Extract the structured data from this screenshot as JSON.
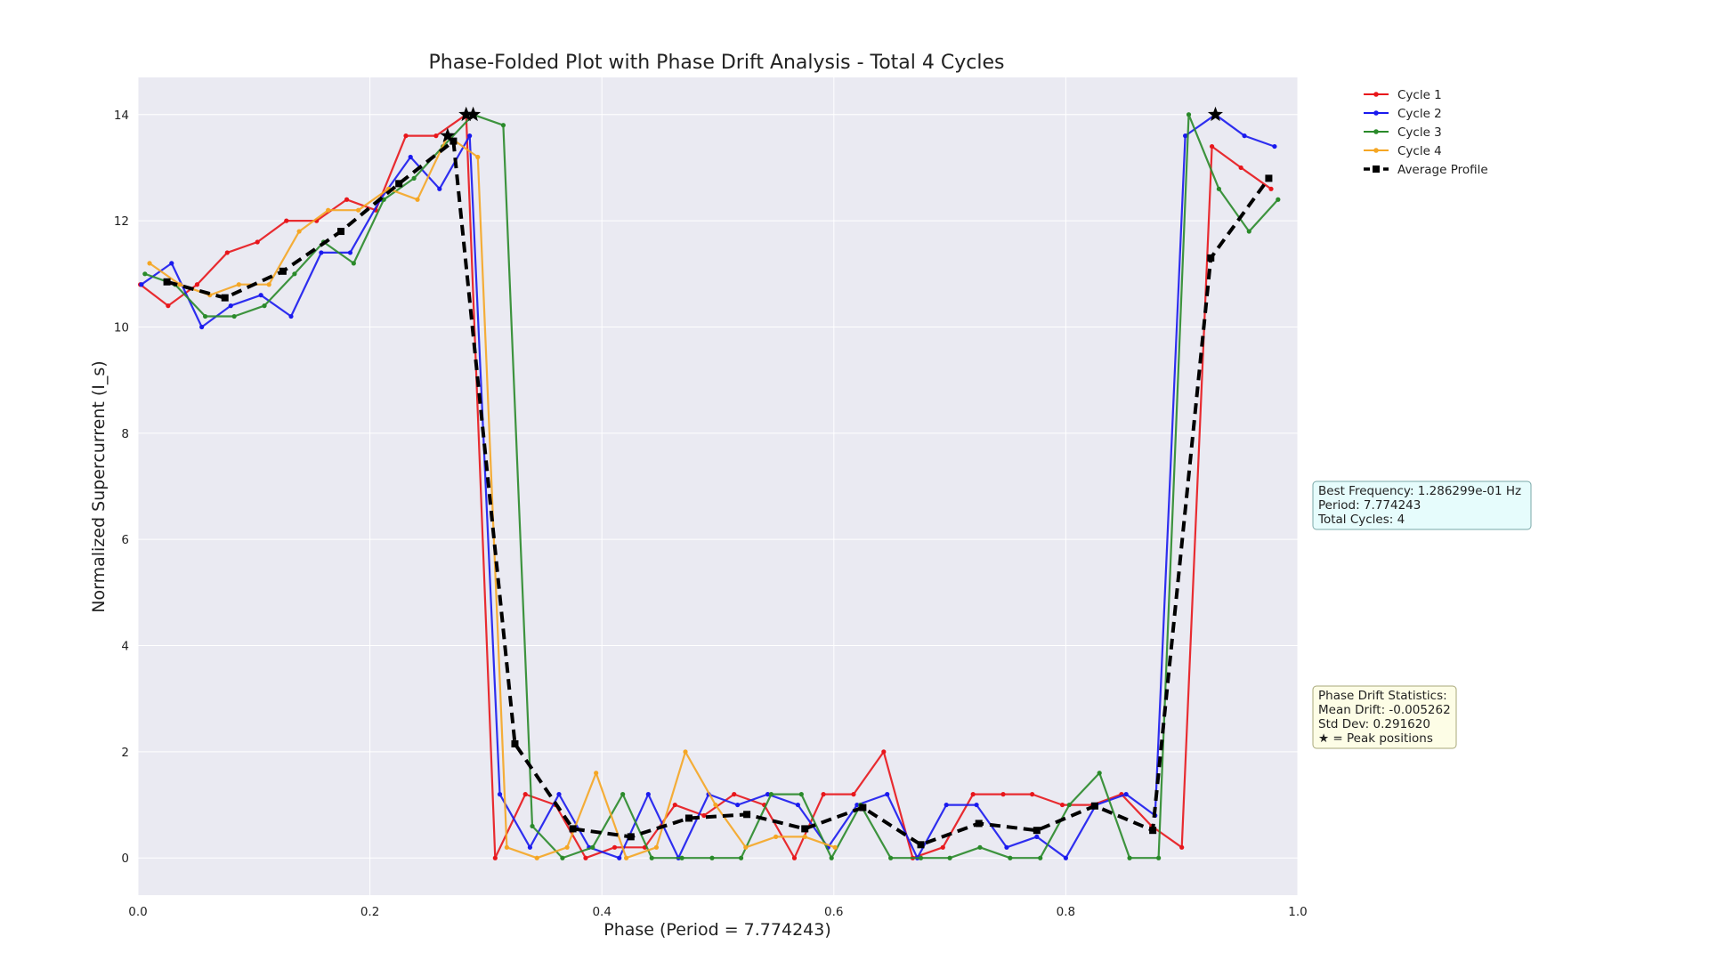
{
  "chart_data": {
    "type": "line",
    "title": "Phase-Folded Plot with Phase Drift Analysis - Total 4 Cycles",
    "xlabel": "Phase (Period = 7.774243)",
    "ylabel": "Normalized Supercurrent (I_s)",
    "xlim": [
      0.0,
      1.0
    ],
    "ylim": [
      -0.7,
      14.7
    ],
    "x_ticks": [
      "0.0",
      "0.2",
      "0.4",
      "0.6",
      "0.8",
      "1.0"
    ],
    "y_ticks": [
      "0",
      "2",
      "4",
      "6",
      "8",
      "10",
      "12",
      "14"
    ],
    "grid": true,
    "legend_placement": "outside-right",
    "series": [
      {
        "name": "Cycle 1",
        "color": "#e8161b",
        "style": "solid",
        "points": [
          [
            0.002,
            10.8
          ],
          [
            0.026,
            10.4
          ],
          [
            0.051,
            10.8
          ],
          [
            0.077,
            11.4
          ],
          [
            0.103,
            11.6
          ],
          [
            0.128,
            12.0
          ],
          [
            0.154,
            12.0
          ],
          [
            0.18,
            12.4
          ],
          [
            0.205,
            12.2
          ],
          [
            0.231,
            13.6
          ],
          [
            0.257,
            13.6
          ],
          [
            0.283,
            14.0
          ],
          [
            0.308,
            0.0
          ],
          [
            0.334,
            1.2
          ],
          [
            0.36,
            1.0
          ],
          [
            0.386,
            0.0
          ],
          [
            0.411,
            0.2
          ],
          [
            0.437,
            0.2
          ],
          [
            0.463,
            1.0
          ],
          [
            0.488,
            0.8
          ],
          [
            0.514,
            1.2
          ],
          [
            0.54,
            1.0
          ],
          [
            0.566,
            0.0
          ],
          [
            0.591,
            1.2
          ],
          [
            0.617,
            1.2
          ],
          [
            0.643,
            2.0
          ],
          [
            0.668,
            0.0
          ],
          [
            0.694,
            0.2
          ],
          [
            0.72,
            1.2
          ],
          [
            0.746,
            1.2
          ],
          [
            0.771,
            1.2
          ],
          [
            0.797,
            1.0
          ],
          [
            0.823,
            1.0
          ],
          [
            0.848,
            1.2
          ],
          [
            0.874,
            0.6
          ],
          [
            0.9,
            0.2
          ],
          [
            0.926,
            13.4
          ],
          [
            0.951,
            13.0
          ],
          [
            0.977,
            12.6
          ]
        ]
      },
      {
        "name": "Cycle 2",
        "color": "#1a1aee",
        "style": "solid",
        "points": [
          [
            0.003,
            10.8
          ],
          [
            0.029,
            11.2
          ],
          [
            0.055,
            10.0
          ],
          [
            0.08,
            10.4
          ],
          [
            0.106,
            10.6
          ],
          [
            0.132,
            10.2
          ],
          [
            0.158,
            11.4
          ],
          [
            0.183,
            11.4
          ],
          [
            0.209,
            12.4
          ],
          [
            0.235,
            13.2
          ],
          [
            0.26,
            12.6
          ],
          [
            0.286,
            13.6
          ],
          [
            0.312,
            1.2
          ],
          [
            0.338,
            0.2
          ],
          [
            0.363,
            1.2
          ],
          [
            0.389,
            0.2
          ],
          [
            0.415,
            0.0
          ],
          [
            0.44,
            1.2
          ],
          [
            0.466,
            0.0
          ],
          [
            0.492,
            1.2
          ],
          [
            0.517,
            1.0
          ],
          [
            0.543,
            1.2
          ],
          [
            0.569,
            1.0
          ],
          [
            0.595,
            0.2
          ],
          [
            0.62,
            1.0
          ],
          [
            0.646,
            1.2
          ],
          [
            0.672,
            0.0
          ],
          [
            0.697,
            1.0
          ],
          [
            0.723,
            1.0
          ],
          [
            0.749,
            0.2
          ],
          [
            0.775,
            0.4
          ],
          [
            0.8,
            0.0
          ],
          [
            0.826,
            1.0
          ],
          [
            0.852,
            1.2
          ],
          [
            0.877,
            0.8
          ],
          [
            0.903,
            13.6
          ],
          [
            0.929,
            14.0
          ],
          [
            0.954,
            13.6
          ],
          [
            0.98,
            13.4
          ]
        ]
      },
      {
        "name": "Cycle 3",
        "color": "#2a8a2a",
        "style": "solid",
        "points": [
          [
            0.006,
            11.0
          ],
          [
            0.032,
            10.8
          ],
          [
            0.058,
            10.2
          ],
          [
            0.083,
            10.2
          ],
          [
            0.109,
            10.4
          ],
          [
            0.135,
            11.0
          ],
          [
            0.16,
            11.6
          ],
          [
            0.186,
            11.2
          ],
          [
            0.212,
            12.4
          ],
          [
            0.238,
            12.8
          ],
          [
            0.263,
            13.4
          ],
          [
            0.289,
            14.0
          ],
          [
            0.315,
            13.8
          ],
          [
            0.34,
            0.6
          ],
          [
            0.366,
            0.0
          ],
          [
            0.392,
            0.2
          ],
          [
            0.418,
            1.2
          ],
          [
            0.443,
            0.0
          ],
          [
            0.469,
            0.0
          ],
          [
            0.495,
            0.0
          ],
          [
            0.52,
            0.0
          ],
          [
            0.546,
            1.2
          ],
          [
            0.572,
            1.2
          ],
          [
            0.598,
            0.0
          ],
          [
            0.623,
            1.0
          ],
          [
            0.649,
            0.0
          ],
          [
            0.675,
            0.0
          ],
          [
            0.7,
            0.0
          ],
          [
            0.726,
            0.2
          ],
          [
            0.752,
            0.0
          ],
          [
            0.778,
            0.0
          ],
          [
            0.803,
            1.0
          ],
          [
            0.829,
            1.6
          ],
          [
            0.855,
            0.0
          ],
          [
            0.88,
            0.0
          ],
          [
            0.906,
            14.0
          ],
          [
            0.932,
            12.6
          ],
          [
            0.958,
            11.8
          ],
          [
            0.983,
            12.4
          ]
        ]
      },
      {
        "name": "Cycle 4",
        "color": "#f5a623",
        "style": "solid",
        "points": [
          [
            0.01,
            11.2
          ],
          [
            0.036,
            10.8
          ],
          [
            0.062,
            10.6
          ],
          [
            0.087,
            10.8
          ],
          [
            0.113,
            10.8
          ],
          [
            0.139,
            11.8
          ],
          [
            0.164,
            12.2
          ],
          [
            0.19,
            12.2
          ],
          [
            0.216,
            12.6
          ],
          [
            0.241,
            12.4
          ],
          [
            0.267,
            13.6
          ],
          [
            0.293,
            13.2
          ],
          [
            0.318,
            0.2
          ],
          [
            0.344,
            0.0
          ],
          [
            0.37,
            0.2
          ],
          [
            0.395,
            1.6
          ],
          [
            0.421,
            0.0
          ],
          [
            0.447,
            0.2
          ],
          [
            0.472,
            2.0
          ],
          [
            0.498,
            1.0
          ],
          [
            0.524,
            0.2
          ],
          [
            0.55,
            0.4
          ],
          [
            0.575,
            0.4
          ],
          [
            0.601,
            0.2
          ]
        ]
      },
      {
        "name": "Average Profile",
        "color": "#000000",
        "style": "dashed",
        "points": [
          [
            0.025,
            10.85
          ],
          [
            0.075,
            10.55
          ],
          [
            0.125,
            11.05
          ],
          [
            0.175,
            11.8
          ],
          [
            0.225,
            12.7
          ],
          [
            0.272,
            13.5
          ],
          [
            0.325,
            2.15
          ],
          [
            0.375,
            0.55
          ],
          [
            0.425,
            0.4
          ],
          [
            0.475,
            0.75
          ],
          [
            0.525,
            0.82
          ],
          [
            0.575,
            0.55
          ],
          [
            0.625,
            0.95
          ],
          [
            0.675,
            0.25
          ],
          [
            0.725,
            0.65
          ],
          [
            0.775,
            0.52
          ],
          [
            0.825,
            0.98
          ],
          [
            0.875,
            0.52
          ],
          [
            0.925,
            11.3
          ],
          [
            0.975,
            12.8
          ]
        ]
      }
    ],
    "peak_markers": [
      [
        0.267,
        13.6
      ],
      [
        0.283,
        14.0
      ],
      [
        0.289,
        14.0
      ],
      [
        0.929,
        14.0
      ]
    ],
    "legend": [
      {
        "label": "Cycle 1",
        "color": "#e8161b",
        "style": "solid"
      },
      {
        "label": "Cycle 2",
        "color": "#1a1aee",
        "style": "solid"
      },
      {
        "label": "Cycle 3",
        "color": "#2a8a2a",
        "style": "solid"
      },
      {
        "label": "Cycle 4",
        "color": "#f5a623",
        "style": "solid"
      },
      {
        "label": "Average Profile",
        "color": "#000000",
        "style": "dashed"
      }
    ],
    "annotations": [
      {
        "lines": [
          "Best Frequency: 1.286299e-01 Hz",
          "Period: 7.774243",
          "Total Cycles: 4"
        ],
        "facecolor": "#e6fcfc",
        "edgecolor": "#7aa8a8"
      },
      {
        "lines": [
          "Phase Drift Statistics:",
          "Mean Drift: -0.005262",
          "Std Dev: 0.291620",
          "★ = Peak positions"
        ],
        "facecolor": "#fdfde6",
        "edgecolor": "#a8a87a"
      }
    ]
  }
}
